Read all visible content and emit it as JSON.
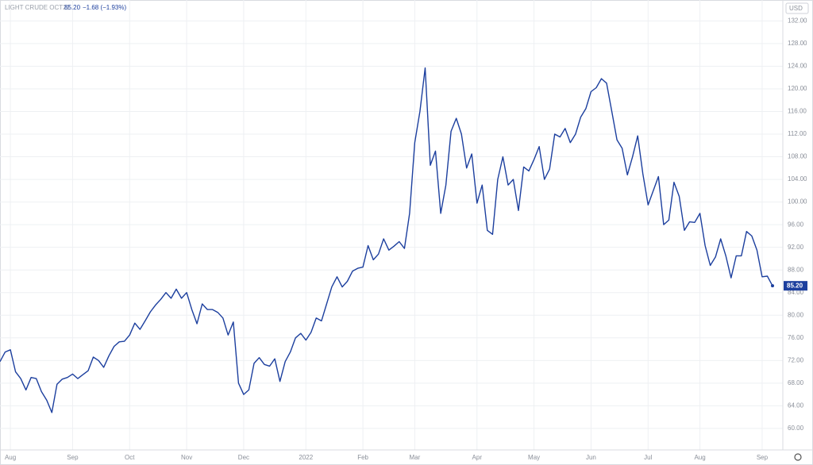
{
  "header": {
    "symbol": "LIGHT CRUDE OCT22",
    "price": "85.20",
    "change": "−1.68 (−1.93%)",
    "currency": "USD"
  },
  "chart_data": {
    "type": "line",
    "categories": [
      null,
      null,
      "Aug",
      null,
      null,
      null,
      null,
      null,
      null,
      null,
      null,
      null,
      null,
      null,
      "Sep",
      null,
      null,
      null,
      null,
      null,
      null,
      null,
      null,
      null,
      null,
      "Oct",
      null,
      null,
      null,
      null,
      null,
      null,
      null,
      null,
      null,
      null,
      "Nov",
      null,
      null,
      null,
      null,
      null,
      null,
      null,
      null,
      null,
      null,
      "Dec",
      null,
      null,
      null,
      null,
      null,
      null,
      null,
      null,
      null,
      null,
      null,
      "2022",
      null,
      null,
      null,
      null,
      null,
      null,
      null,
      null,
      null,
      null,
      "Feb",
      null,
      null,
      null,
      null,
      null,
      null,
      null,
      null,
      null,
      "Mar",
      null,
      null,
      null,
      null,
      null,
      null,
      null,
      null,
      null,
      null,
      null,
      "Apr",
      null,
      null,
      null,
      null,
      null,
      null,
      null,
      null,
      null,
      null,
      "May",
      null,
      null,
      null,
      null,
      null,
      null,
      null,
      null,
      null,
      null,
      "Jun",
      null,
      null,
      null,
      null,
      null,
      null,
      null,
      null,
      null,
      null,
      "Jul",
      null,
      null,
      null,
      null,
      null,
      null,
      null,
      null,
      null,
      "Aug",
      null,
      null,
      null,
      null,
      null,
      null,
      null,
      null,
      null,
      null,
      null,
      "Sep",
      null,
      null
    ],
    "series": [
      {
        "name": "LIGHT CRUDE OCT22",
        "color": "#1c3f9e",
        "values": [
          71.8,
          73.5,
          73.9,
          70,
          68.8,
          66.8,
          69,
          68.8,
          66.5,
          65,
          62.8,
          67.8,
          68.7,
          69,
          69.6,
          68.8,
          69.5,
          70.2,
          72.6,
          72,
          70.8,
          72.8,
          74.5,
          75.3,
          75.4,
          76.5,
          78.6,
          77.5,
          79,
          80.6,
          81.8,
          82.8,
          84,
          83,
          84.6,
          83,
          84,
          81,
          78.5,
          82,
          81,
          81,
          80.5,
          79.5,
          76.5,
          78.8,
          68,
          66,
          66.8,
          71.5,
          72.5,
          71.3,
          71,
          72.3,
          68.3,
          71.8,
          73.5,
          76,
          76.8,
          75.6,
          77,
          79.5,
          79,
          82,
          85,
          86.8,
          85,
          86,
          87.8,
          88.3,
          88.5,
          92.3,
          89.8,
          90.8,
          93.5,
          91.5,
          92.2,
          93,
          91.8,
          98,
          110.5,
          116,
          123.7,
          106.5,
          109,
          98,
          103,
          112.5,
          114.8,
          112,
          106,
          108.5,
          99.8,
          103,
          95,
          94.3,
          104,
          108,
          103,
          104,
          98.5,
          106.2,
          105.5,
          107.5,
          109.8,
          104,
          105.8,
          112,
          111.5,
          113,
          110.5,
          112,
          115,
          116.5,
          119.5,
          120.2,
          121.8,
          121,
          116,
          111,
          109.5,
          104.8,
          108,
          111.7,
          105,
          99.5,
          102,
          104.5,
          96,
          96.8,
          103.5,
          101,
          95,
          96.5,
          96.4,
          98,
          92.3,
          88.8,
          90.3,
          93.5,
          90.5,
          86.6,
          90.5,
          90.5,
          94.8,
          94,
          91.5,
          86.8,
          86.9,
          85.2
        ]
      }
    ],
    "ylim": [
      56.2,
      135.7
    ],
    "yticks": [
      {
        "value": 60,
        "label": "60.00"
      },
      {
        "value": 64,
        "label": "64.00"
      },
      {
        "value": 68,
        "label": "68.00"
      },
      {
        "value": 72,
        "label": "72.00"
      },
      {
        "value": 76,
        "label": "76.00"
      },
      {
        "value": 80,
        "label": "80.00"
      },
      {
        "value": 84,
        "label": "84.00"
      },
      {
        "value": 88,
        "label": "88.00"
      },
      {
        "value": 92,
        "label": "92.00"
      },
      {
        "value": 96,
        "label": "96.00"
      },
      {
        "value": 100,
        "label": "100.00"
      },
      {
        "value": 104,
        "label": "104.00"
      },
      {
        "value": 108,
        "label": "108.00"
      },
      {
        "value": 112,
        "label": "112.00"
      },
      {
        "value": 116,
        "label": "116.00"
      },
      {
        "value": 120,
        "label": "120.00"
      },
      {
        "value": 124,
        "label": "124.00"
      },
      {
        "value": 128,
        "label": "128.00"
      },
      {
        "value": 132,
        "label": "132.00"
      }
    ],
    "grid": true
  }
}
